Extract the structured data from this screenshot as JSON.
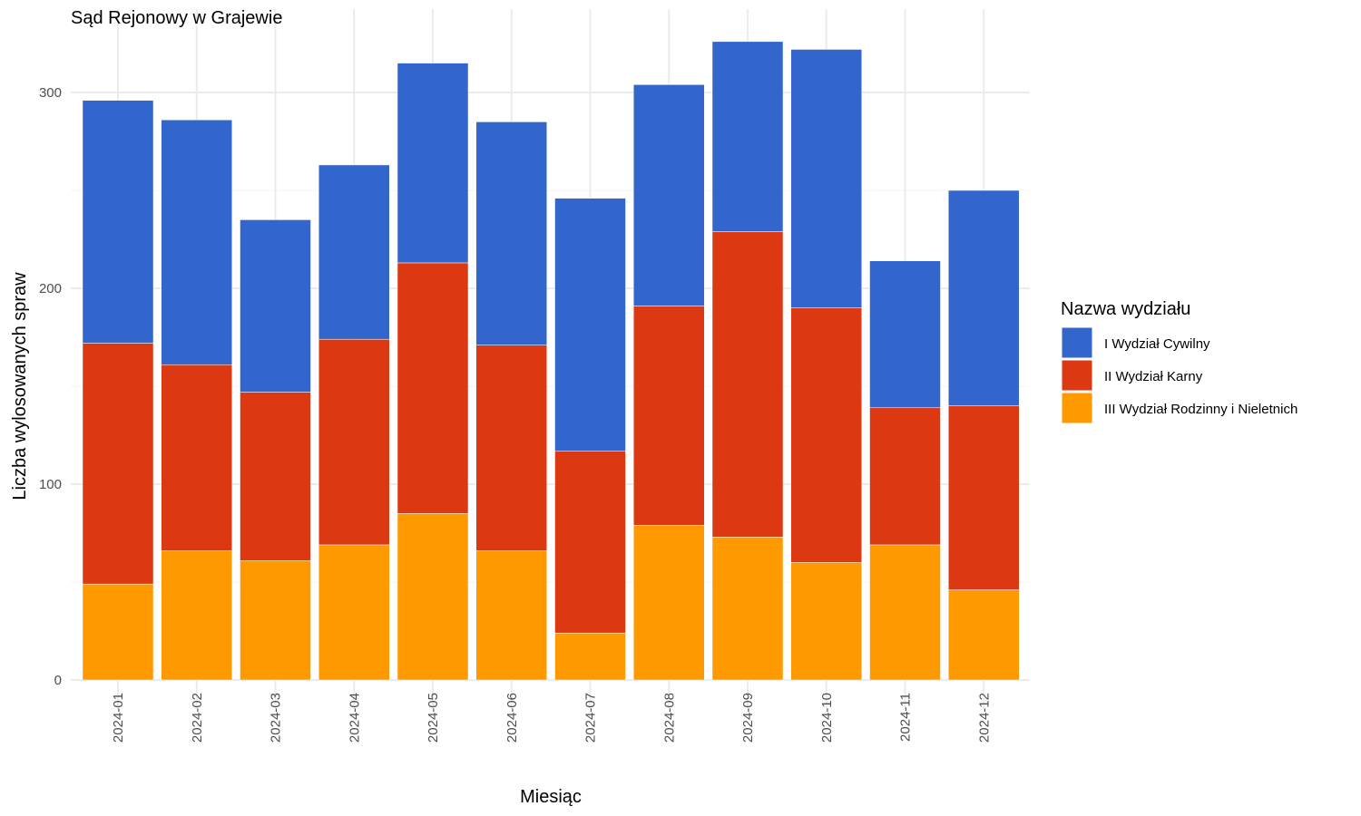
{
  "chart_data": {
    "type": "bar",
    "stacked": true,
    "title": "Sąd Rejonowy w Grajewie",
    "xlabel": "Miesiąc",
    "ylabel": "Liczba wylosowanych spraw",
    "ylim": [
      0,
      330
    ],
    "yticks": [
      0,
      100,
      200,
      300
    ],
    "grid": true,
    "legend": {
      "title": "Nazwa wydziału",
      "position": "right"
    },
    "categories": [
      "2024-01",
      "2024-02",
      "2024-03",
      "2024-04",
      "2024-05",
      "2024-06",
      "2024-07",
      "2024-08",
      "2024-09",
      "2024-10",
      "2024-11",
      "2024-12"
    ],
    "series": [
      {
        "name": "III Wydział Rodzinny i Nieletnich",
        "color": "#FF9900",
        "values": [
          49,
          66,
          61,
          69,
          85,
          66,
          24,
          79,
          73,
          60,
          69,
          46
        ]
      },
      {
        "name": "II Wydział Karny",
        "color": "#DC3912",
        "values": [
          123,
          95,
          86,
          105,
          128,
          105,
          93,
          112,
          156,
          130,
          70,
          94
        ]
      },
      {
        "name": "I Wydział Cywilny",
        "color": "#3366CC",
        "values": [
          124,
          125,
          88,
          89,
          102,
          114,
          129,
          113,
          97,
          132,
          75,
          110
        ]
      }
    ],
    "legend_order": [
      "I Wydział Cywilny",
      "II Wydział Karny",
      "III Wydział Rodzinny i Nieletnich"
    ]
  }
}
